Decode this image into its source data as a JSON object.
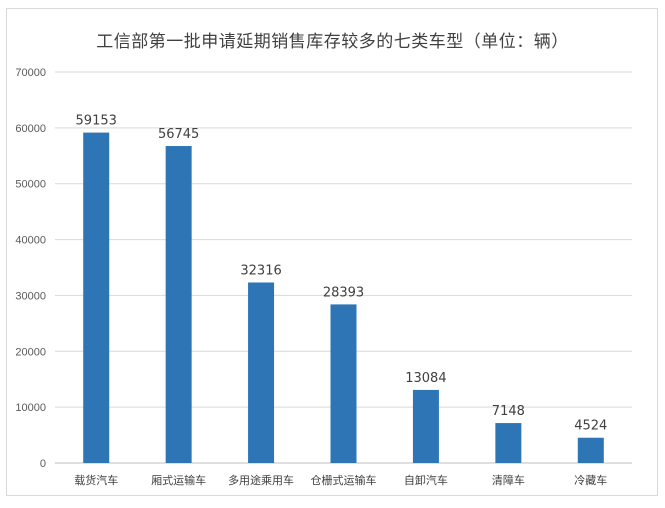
{
  "chart_data": {
    "type": "bar",
    "title": "工信部第一批申请延期销售库存较多的七类车型（单位：辆）",
    "categories": [
      "载货汽车",
      "厢式运输车",
      "多用途乘用车",
      "仓栅式运输车",
      "自卸汽车",
      "清障车",
      "冷藏车"
    ],
    "values": [
      59153,
      56745,
      32316,
      28393,
      13084,
      7148,
      4524
    ],
    "data_labels": [
      "59153",
      "56745",
      "32316",
      "28393",
      "13084",
      "7148",
      "4524"
    ],
    "y_ticks": [
      "0",
      "10000",
      "20000",
      "30000",
      "40000",
      "50000",
      "60000",
      "70000"
    ],
    "ylim": [
      0,
      70000
    ],
    "grid": true,
    "bar_color": "#2e75b6"
  }
}
